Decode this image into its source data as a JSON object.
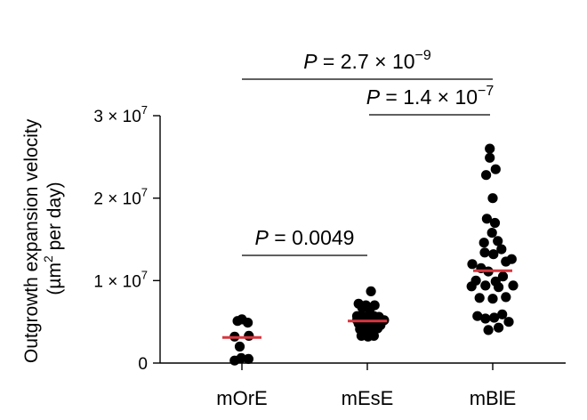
{
  "chart_data": {
    "type": "scatter",
    "subtype": "dot-strip-plot-with-median",
    "ylabel_line1": "Outgrowth expansion velocity",
    "ylabel_line2": {
      "pre": "(µm",
      "sup": "2",
      "post": " per day)"
    },
    "ylim": [
      0,
      30000000
    ],
    "yticks": [
      {
        "value": 0,
        "text": "0"
      },
      {
        "value": 10000000,
        "mantissa": "1 × 10",
        "exp": "7"
      },
      {
        "value": 20000000,
        "mantissa": "2 × 10",
        "exp": "7"
      },
      {
        "value": 30000000,
        "mantissa": "3 × 10",
        "exp": "7"
      }
    ],
    "categories": [
      "mOrE",
      "mEsE",
      "mBlE"
    ],
    "median_color": "#d9363e",
    "point_color": "#000000",
    "groups": [
      {
        "name": "mOrE",
        "median": 3100000,
        "points": [
          {
            "dx": -0.6,
            "y": 5100000
          },
          {
            "dx": 0.0,
            "y": 5300000
          },
          {
            "dx": 0.8,
            "y": 4900000
          },
          {
            "dx": -1.0,
            "y": 3200000
          },
          {
            "dx": 0.95,
            "y": 3300000
          },
          {
            "dx": -0.3,
            "y": 2000000
          },
          {
            "dx": -1.0,
            "y": 300000
          },
          {
            "dx": -0.1,
            "y": 600000
          },
          {
            "dx": 0.9,
            "y": 500000
          }
        ]
      },
      {
        "name": "mEsE",
        "median": 5100000,
        "points": [
          {
            "dx": 0.5,
            "y": 8700000
          },
          {
            "dx": -1.2,
            "y": 7200000
          },
          {
            "dx": -0.2,
            "y": 7000000
          },
          {
            "dx": 1.0,
            "y": 7000000
          },
          {
            "dx": -0.7,
            "y": 6700000
          },
          {
            "dx": 0.3,
            "y": 6500000
          },
          {
            "dx": -1.4,
            "y": 5700000
          },
          {
            "dx": -0.7,
            "y": 5700000
          },
          {
            "dx": 0.1,
            "y": 5600000
          },
          {
            "dx": 0.9,
            "y": 5700000
          },
          {
            "dx": 1.6,
            "y": 5600000
          },
          {
            "dx": -1.2,
            "y": 4800000
          },
          {
            "dx": -0.5,
            "y": 4700000
          },
          {
            "dx": 0.3,
            "y": 4700000
          },
          {
            "dx": 1.1,
            "y": 4800000
          },
          {
            "dx": 2.3,
            "y": 5200000
          },
          {
            "dx": -1.0,
            "y": 4100000
          },
          {
            "dx": -0.2,
            "y": 4000000
          },
          {
            "dx": 0.6,
            "y": 4000000
          },
          {
            "dx": 1.4,
            "y": 4200000
          },
          {
            "dx": -0.8,
            "y": 3300000
          },
          {
            "dx": 0.1,
            "y": 3200000
          },
          {
            "dx": 0.9,
            "y": 3300000
          },
          {
            "dx": -1.4,
            "y": 5200000
          },
          {
            "dx": 1.8,
            "y": 4600000
          }
        ]
      },
      {
        "name": "mBlE",
        "median": 11200000,
        "points": [
          {
            "dx": -0.4,
            "y": 26000000
          },
          {
            "dx": -0.4,
            "y": 24900000
          },
          {
            "dx": 0.4,
            "y": 23500000
          },
          {
            "dx": -0.9,
            "y": 22800000
          },
          {
            "dx": 0.0,
            "y": 20000000
          },
          {
            "dx": 0.3,
            "y": 17000000
          },
          {
            "dx": -0.8,
            "y": 17500000
          },
          {
            "dx": -0.1,
            "y": 15800000
          },
          {
            "dx": -1.2,
            "y": 14600000
          },
          {
            "dx": 0.7,
            "y": 14800000
          },
          {
            "dx": -1.1,
            "y": 13400000
          },
          {
            "dx": 0.1,
            "y": 13200000
          },
          {
            "dx": 1.2,
            "y": 13800000
          },
          {
            "dx": 2.6,
            "y": 12600000
          },
          {
            "dx": -2.8,
            "y": 12000000
          },
          {
            "dx": 1.8,
            "y": 12300000
          },
          {
            "dx": -1.6,
            "y": 11500000
          },
          {
            "dx": -0.6,
            "y": 11100000
          },
          {
            "dx": 1.4,
            "y": 10500000
          },
          {
            "dx": -2.3,
            "y": 10000000
          },
          {
            "dx": 0.4,
            "y": 9900000
          },
          {
            "dx": -2.9,
            "y": 9300000
          },
          {
            "dx": -1.0,
            "y": 9400000
          },
          {
            "dx": 0.8,
            "y": 9200000
          },
          {
            "dx": 2.8,
            "y": 9400000
          },
          {
            "dx": -1.8,
            "y": 7900000
          },
          {
            "dx": 0.0,
            "y": 7800000
          },
          {
            "dx": 1.8,
            "y": 8000000
          },
          {
            "dx": -2.1,
            "y": 5700000
          },
          {
            "dx": -1.0,
            "y": 5400000
          },
          {
            "dx": 0.2,
            "y": 5500000
          },
          {
            "dx": 1.3,
            "y": 5900000
          },
          {
            "dx": 2.2,
            "y": 5000000
          },
          {
            "dx": -0.6,
            "y": 4000000
          },
          {
            "dx": 0.8,
            "y": 4300000
          }
        ]
      }
    ],
    "comparisons": [
      {
        "from": "mOrE",
        "to": "mEsE",
        "p_label": "P",
        "p_value": " = 0.0049"
      },
      {
        "from": "mEsE",
        "to": "mBlE",
        "p_label": "P",
        "p_value": " = 1.4 × 10",
        "p_exp": "−7"
      },
      {
        "from": "mOrE",
        "to": "mBlE",
        "p_label": "P",
        "p_value": " = 2.7 × 10",
        "p_exp": "−9"
      }
    ]
  }
}
